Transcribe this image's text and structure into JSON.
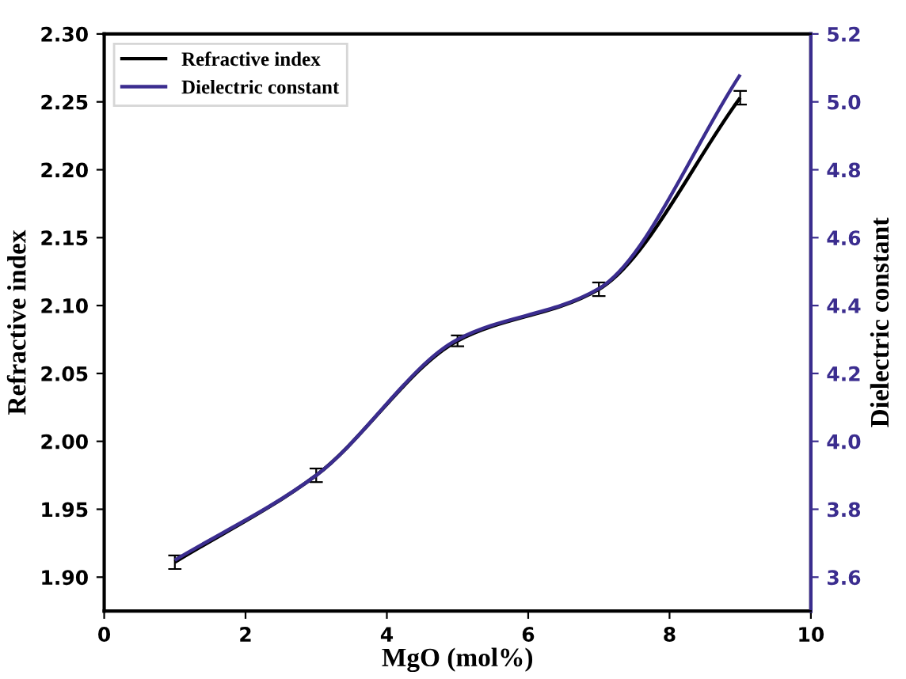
{
  "chart_data": {
    "type": "line",
    "xlabel": "MgO (mol%)",
    "ylabel": "Refractive index",
    "y2label": "Dielectric constant",
    "x": [
      1,
      3,
      5,
      7,
      9
    ],
    "series": [
      {
        "name": "Refractive index",
        "color": "#000000",
        "values": [
          1.911,
          1.975,
          2.074,
          2.112,
          2.253
        ],
        "errors": [
          0.005,
          0.005,
          0.004,
          0.005,
          0.005
        ]
      },
      {
        "name": "Dielectric constant",
        "color": "#3b2d8f",
        "axis": "y2",
        "values": [
          3.65,
          3.9,
          4.3,
          4.45,
          5.08
        ]
      }
    ],
    "xlim": [
      0,
      10
    ],
    "xticks": [
      0,
      2,
      4,
      6,
      8,
      10
    ],
    "ylim": [
      1.875,
      2.3
    ],
    "yticks": [
      {
        "value": 1.9,
        "label": "1.90"
      },
      1.95,
      {
        "value": 2.0,
        "label": "2.00"
      },
      2.05,
      {
        "value": 2.1,
        "label": "2.10"
      },
      2.15,
      {
        "value": 2.2,
        "label": "2.20"
      },
      2.25,
      {
        "value": 2.3,
        "label": "2.30"
      }
    ],
    "y2lim": [
      3.5,
      5.2
    ],
    "y2ticks": [
      3.6,
      3.8,
      {
        "value": 4.0,
        "label": "4.0"
      },
      4.2,
      4.4,
      4.6,
      4.8,
      {
        "value": 5.0,
        "label": "5.0"
      },
      5.2
    ],
    "legend": "top left",
    "grid": false
  }
}
